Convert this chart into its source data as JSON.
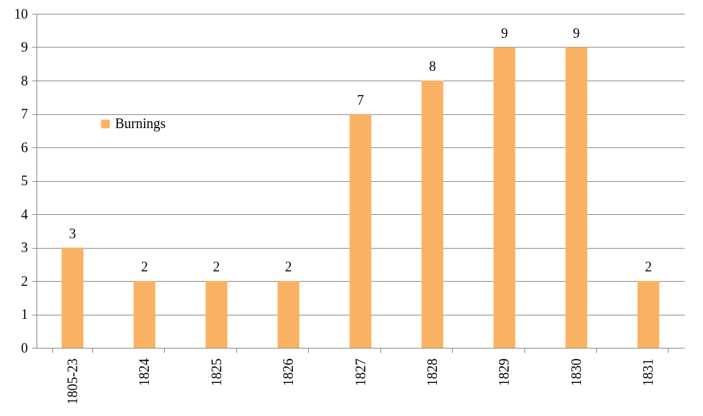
{
  "chart_data": {
    "type": "bar",
    "categories": [
      "1805-23",
      "1824",
      "1825",
      "1826",
      "1827",
      "1828",
      "1829",
      "1830",
      "1831"
    ],
    "series": [
      {
        "name": "Burnings",
        "color": "#f9b264",
        "values": [
          3,
          2,
          2,
          2,
          7,
          8,
          9,
          9,
          2
        ]
      }
    ],
    "ylim": [
      0,
      10
    ],
    "yticks": [
      0,
      1,
      2,
      3,
      4,
      5,
      6,
      7,
      8,
      9,
      10
    ],
    "grid": "y",
    "legend": "left",
    "data_labels": true
  }
}
